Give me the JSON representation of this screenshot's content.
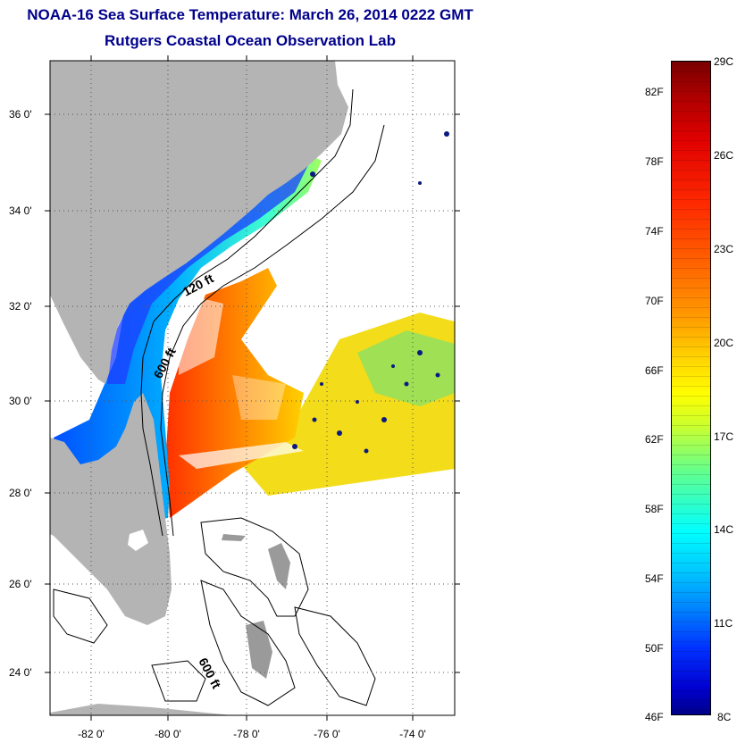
{
  "title": "NOAA-16 Sea Surface Temperature:  March 26, 2014 0222 GMT",
  "subtitle": "Rutgers Coastal Ocean Observation Lab",
  "map": {
    "lat_ticks": [
      "36 0'",
      "34 0'",
      "32 0'",
      "30 0'",
      "28 0'",
      "26 0'",
      "24 0'"
    ],
    "lon_ticks": [
      "-82 0'",
      "-80 0'",
      "-78 0'",
      "-76 0'",
      "-74 0'"
    ],
    "contour_labels": [
      "120 ft",
      "600 ft",
      "600 ft"
    ],
    "colors": {
      "land": "#b4b4b4",
      "cloud": "#ffffff",
      "title": "#00008b"
    }
  },
  "colorbar": {
    "fahrenheit": [
      "82F",
      "78F",
      "74F",
      "70F",
      "66F",
      "62F",
      "58F",
      "54F",
      "50F",
      "46F"
    ],
    "celsius": [
      "29C",
      "26C",
      "23C",
      "20C",
      "17C",
      "14C",
      "11C",
      "8C"
    ]
  }
}
